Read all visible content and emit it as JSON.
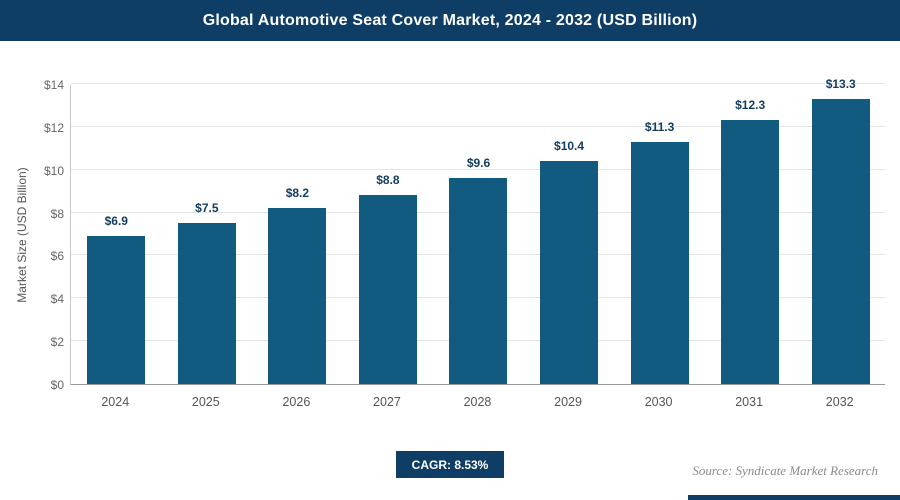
{
  "header": {
    "title": "Global Automotive Seat Cover Market, 2024 - 2032 (USD Billion)"
  },
  "chart_data": {
    "type": "bar",
    "title": "Global Automotive Seat Cover Market, 2024 - 2032 (USD Billion)",
    "categories": [
      "2024",
      "2025",
      "2026",
      "2027",
      "2028",
      "2029",
      "2030",
      "2031",
      "2032"
    ],
    "values": [
      6.9,
      7.5,
      8.2,
      8.8,
      9.6,
      10.4,
      11.3,
      12.3,
      13.3
    ],
    "value_labels": [
      "$6.9",
      "$7.5",
      "$8.2",
      "$8.8",
      "$9.6",
      "$10.4",
      "$11.3",
      "$12.3",
      "$13.3"
    ],
    "xlabel": "",
    "ylabel": "Market Size (USD Billion)",
    "ylim": [
      0,
      14
    ],
    "ytick_step": 2,
    "ytick_labels": [
      "$0",
      "$2",
      "$4",
      "$6",
      "$8",
      "$10",
      "$12",
      "$14"
    ],
    "grid": true,
    "legend": false,
    "bar_color": "#115a80"
  },
  "footer": {
    "cagr_label": "CAGR: 8.53%",
    "source": "Source: Syndicate Market Research"
  },
  "colors": {
    "header_bg": "#0e3d66",
    "bar": "#115a80",
    "accent": "#0e3d66",
    "gridline": "#e4e4e4",
    "data_label": "#123c5f"
  }
}
